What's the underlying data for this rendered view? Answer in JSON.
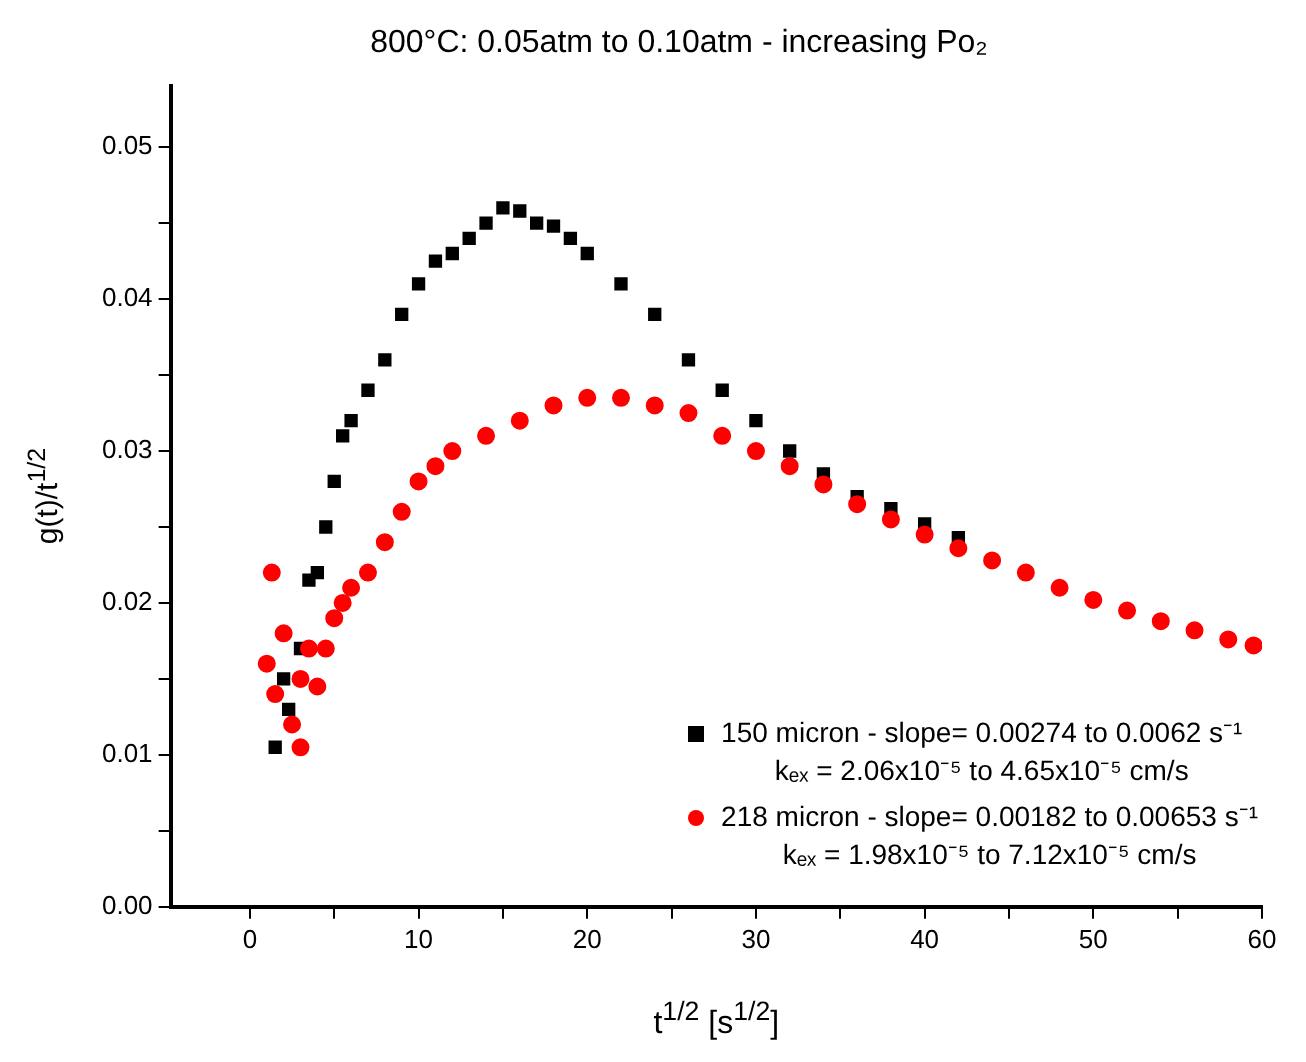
{
  "chart_data": {
    "type": "scatter",
    "title": "800°C: 0.05atm to 0.10atm - increasing Po₂",
    "xlabel": "t$^{1/2}$ [s$^{1/2}$]",
    "ylabel": "g(t)/t$^{1/2}$",
    "xlim": [
      -4.7,
      60
    ],
    "ylim": [
      0,
      0.054
    ],
    "xticks": [
      0,
      {
        "value": 5,
        "label": null
      },
      10,
      {
        "value": 15,
        "label": null
      },
      20,
      {
        "value": 25,
        "label": null
      },
      30,
      {
        "value": 35,
        "label": null
      },
      40,
      {
        "value": 45,
        "label": null
      },
      50,
      {
        "value": 55,
        "label": null
      },
      60
    ],
    "yticks": [
      "0.00",
      {
        "value": 0.005,
        "label": null
      },
      {
        "value": 0.01,
        "label": "0.01"
      },
      {
        "value": 0.015,
        "label": null
      },
      {
        "value": 0.02,
        "label": "0.02"
      },
      {
        "value": 0.025,
        "label": null
      },
      {
        "value": 0.03,
        "label": "0.03"
      },
      {
        "value": 0.035,
        "label": null
      },
      {
        "value": 0.04,
        "label": "0.04"
      },
      {
        "value": 0.045,
        "label": null
      },
      {
        "value": 0.05,
        "label": "0.05"
      }
    ],
    "grid": false,
    "legend": "bottom right",
    "series": [
      {
        "name": "150 micron - slope= 0.00274 to 0.0062 s⁻¹\nkₑₓ = 2.06x10⁻⁵ to 4.65x10⁻⁵ cm/s",
        "color": "#000000",
        "marker": "square",
        "x": [
          1.5,
          2,
          2.3,
          3,
          3.5,
          4,
          4.5,
          5,
          5.5,
          6,
          7,
          8,
          9,
          10,
          11,
          12,
          13,
          14,
          15,
          16,
          17,
          18,
          19,
          20,
          22,
          24,
          26,
          28,
          30,
          32,
          34,
          36,
          38,
          40,
          42
        ],
        "values": [
          0.0105,
          0.015,
          0.013,
          0.017,
          0.0215,
          0.022,
          0.025,
          0.028,
          0.031,
          0.032,
          0.034,
          0.036,
          0.039,
          0.041,
          0.0425,
          0.043,
          0.044,
          0.045,
          0.046,
          0.0458,
          0.045,
          0.0448,
          0.044,
          0.043,
          0.041,
          0.039,
          0.036,
          0.034,
          0.032,
          0.03,
          0.0285,
          0.027,
          0.0262,
          0.0252,
          0.0243
        ]
      },
      {
        "name": "218 micron - slope= 0.00182 to 0.00653 s⁻¹\nkₑₓ = 1.98x10⁻⁵ to 7.12x10⁻⁵ cm/s",
        "color": "#ff0000",
        "marker": "circle",
        "x": [
          1,
          1.3,
          1.5,
          2,
          2.5,
          3,
          3,
          3.5,
          4,
          4.5,
          5,
          5.5,
          6,
          7,
          8,
          9,
          10,
          11,
          12,
          14,
          16,
          18,
          20,
          22,
          24,
          26,
          28,
          30,
          32,
          34,
          36,
          38,
          40,
          42,
          44,
          46,
          48,
          50,
          52,
          54,
          56,
          58,
          59.5
        ],
        "values": [
          0.016,
          0.022,
          0.014,
          0.018,
          0.012,
          0.0105,
          0.015,
          0.017,
          0.0145,
          0.017,
          0.019,
          0.02,
          0.021,
          0.022,
          0.024,
          0.026,
          0.028,
          0.029,
          0.03,
          0.031,
          0.032,
          0.033,
          0.0335,
          0.0335,
          0.033,
          0.0325,
          0.031,
          0.03,
          0.029,
          0.0278,
          0.0265,
          0.0255,
          0.0245,
          0.0236,
          0.0228,
          0.022,
          0.021,
          0.0202,
          0.0195,
          0.0188,
          0.0182,
          0.0176,
          0.0172
        ]
      }
    ]
  }
}
